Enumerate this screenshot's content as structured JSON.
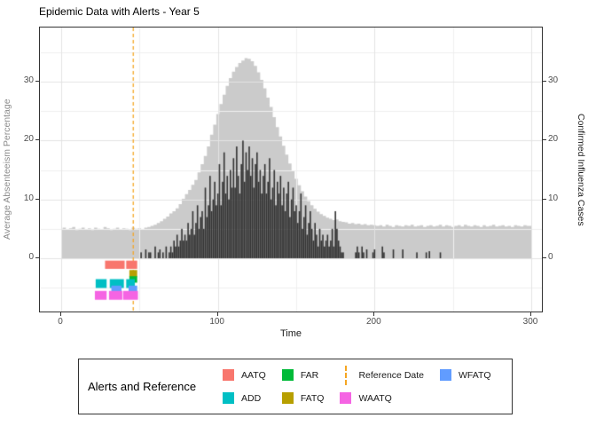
{
  "title": "Epidemic Data with Alerts - Year 5",
  "axes": {
    "left": {
      "title": "Average Absenteeism Percentage",
      "tick_values": [
        0,
        10,
        20,
        30
      ],
      "title_color": "#8C8C8C"
    },
    "right": {
      "title": "Confirmed Influenza Cases",
      "tick_values": [
        0,
        10,
        20,
        30
      ],
      "title_color": "#1A1A1A"
    },
    "x": {
      "title": "Time",
      "tick_values": [
        0,
        100,
        200,
        300
      ]
    }
  },
  "legend": {
    "title": "Alerts and Reference",
    "items": [
      {
        "label": "AATQ",
        "color": "#F8766D",
        "kind": "fill"
      },
      {
        "label": "ADD",
        "color": "#00BFC4",
        "kind": "fill"
      },
      {
        "label": "FAR",
        "color": "#00BA38",
        "kind": "fill"
      },
      {
        "label": "FATQ",
        "color": "#B79F00",
        "kind": "fill"
      },
      {
        "label": "Reference Date",
        "color": "#F5A623",
        "kind": "dashed-line"
      },
      {
        "label": "WAATQ",
        "color": "#F564E3",
        "kind": "fill"
      },
      {
        "label": "WFATQ",
        "color": "#619CFF",
        "kind": "fill"
      }
    ]
  },
  "chart_data": {
    "type": "area+bar",
    "title": "Epidemic Data with Alerts - Year 5",
    "xlabel": "Time",
    "ylabel_left": "Average Absenteeism Percentage",
    "ylabel_right": "Confirmed Influenza Cases",
    "xlim": [
      -14,
      308
    ],
    "ylim": [
      -9.4,
      39.2
    ],
    "x_ticks": [
      0,
      100,
      200,
      300
    ],
    "y_ticks": [
      0,
      10,
      20,
      30
    ],
    "grid": {
      "major_x": [
        0,
        100,
        200,
        300
      ],
      "minor_x": [
        50,
        150,
        250
      ],
      "major_y": [
        0,
        10,
        20,
        30
      ],
      "minor_y": [
        -5,
        5,
        15,
        25,
        35
      ]
    },
    "reference_date": 46,
    "colors": {
      "absenteeism": "#CBCBCB",
      "influenza": "#333333",
      "reference": "#F5A623"
    },
    "absenteeism_series": {
      "name": "Average Absenteeism Percentage",
      "x_start": 0,
      "x_step": 2,
      "values": [
        5.0,
        5.2,
        4.9,
        5.1,
        5.3,
        4.8,
        5.0,
        5.2,
        4.9,
        5.1,
        4.8,
        5.2,
        5.0,
        4.9,
        5.3,
        5.1,
        4.8,
        5.0,
        5.2,
        4.9,
        5.1,
        5.0,
        4.8,
        5.2,
        5.0,
        5.1,
        4.9,
        5.2,
        5.3,
        5.5,
        5.7,
        6.0,
        6.3,
        6.7,
        7.1,
        7.6,
        8.0,
        8.5,
        9.2,
        10.1,
        10.9,
        11.6,
        12.5,
        13.3,
        14.6,
        16.0,
        17.4,
        19.0,
        21.0,
        22.7,
        24.5,
        26.2,
        27.8,
        29.3,
        30.6,
        31.7,
        32.5,
        33.2,
        33.6,
        34.0,
        33.9,
        33.5,
        32.7,
        31.6,
        30.3,
        28.9,
        27.3,
        25.7,
        24.0,
        22.3,
        20.7,
        19.1,
        17.6,
        16.1,
        14.8,
        13.5,
        12.4,
        11.4,
        10.5,
        9.7,
        9.0,
        8.4,
        7.9,
        7.5,
        7.2,
        6.9,
        6.7,
        6.5,
        6.6,
        6.3,
        6.2,
        6.1,
        5.9,
        6.0,
        5.8,
        5.9,
        5.7,
        5.8,
        5.6,
        5.7,
        5.6,
        5.5,
        5.6,
        5.4,
        5.7,
        5.5,
        5.3,
        5.6,
        5.5,
        5.4,
        5.6,
        5.5,
        5.7,
        5.4,
        5.5,
        5.6,
        5.3,
        5.5,
        5.6,
        5.4,
        5.5,
        5.7,
        5.4,
        5.6,
        5.5,
        5.3,
        5.5,
        5.6,
        5.4,
        5.7,
        5.5,
        5.4,
        5.6,
        5.5,
        5.3,
        5.6,
        5.4,
        5.5,
        5.7,
        5.4,
        5.5,
        5.6,
        5.4,
        5.5,
        5.3,
        5.6,
        5.5,
        5.4,
        5.6,
        5.5,
        5.5
      ]
    },
    "influenza_series": {
      "name": "Confirmed Influenza Cases",
      "x_start": 50,
      "x_step": 1,
      "values": [
        0,
        1,
        0,
        0,
        1.5,
        0,
        1,
        1,
        0,
        0,
        2,
        0,
        1,
        1.5,
        0,
        1,
        0,
        2,
        0,
        1,
        2,
        1,
        3,
        2,
        4,
        2,
        3,
        5,
        3,
        4,
        3,
        6,
        4,
        5,
        8,
        4,
        6,
        9,
        5,
        7,
        8,
        5,
        12,
        7,
        9,
        14,
        8,
        10,
        13,
        9,
        11,
        16,
        9,
        13,
        18,
        11,
        14,
        10,
        15,
        12,
        17,
        12,
        19,
        14,
        11,
        16,
        20,
        13,
        18,
        15,
        19,
        14,
        17,
        12,
        16,
        18,
        13,
        15,
        11,
        14,
        16,
        11,
        13,
        17,
        10,
        12,
        15,
        9,
        13,
        11,
        14,
        9,
        12,
        8,
        11,
        13,
        7,
        10,
        12,
        8,
        9,
        6,
        8,
        11,
        5,
        7,
        9,
        4,
        6,
        8,
        5,
        3,
        6,
        4,
        2,
        5,
        3,
        4,
        2,
        3,
        4,
        2,
        3,
        5,
        2,
        8,
        5,
        3,
        2,
        1,
        1,
        0,
        0,
        0,
        0,
        0,
        0,
        0,
        1,
        2,
        1,
        0,
        2,
        1,
        0,
        1.5,
        0,
        0,
        0,
        1,
        1.5,
        0,
        0,
        0,
        0,
        2,
        1,
        0,
        0,
        0,
        0,
        0,
        1.5,
        0,
        0,
        0,
        0,
        0,
        1.5,
        0,
        0,
        0,
        0,
        0,
        0,
        0,
        0,
        1,
        0,
        0,
        0,
        0,
        0,
        1,
        0,
        1.2,
        0,
        0,
        0,
        0,
        0,
        0,
        1,
        0,
        0
      ]
    },
    "alert_markers": [
      {
        "name": "AATQ",
        "color": "#F8766D",
        "row": -1.1,
        "tile_height": 1.4,
        "segments": [
          [
            28,
            40.5
          ],
          [
            41.5,
            48.5
          ]
        ]
      },
      {
        "name": "FATQ",
        "color": "#B79F00",
        "row": -2.6,
        "tile_height": 1.2,
        "segments": [
          [
            43.5,
            48.5
          ]
        ]
      },
      {
        "name": "FAR",
        "color": "#00BA38",
        "row": -3.6,
        "tile_height": 1.1,
        "segments": [
          [
            43.5,
            48.5
          ]
        ]
      },
      {
        "name": "ADD",
        "color": "#00BFC4",
        "row": -4.3,
        "tile_height": 1.5,
        "segments": [
          [
            22,
            29
          ],
          [
            31,
            40
          ],
          [
            41.5,
            47
          ]
        ]
      },
      {
        "name": "WFATQ",
        "color": "#619CFF",
        "row": -5.4,
        "tile_height": 1.5,
        "segments": [
          [
            32,
            38.5
          ],
          [
            43,
            48.5
          ]
        ]
      },
      {
        "name": "WAATQ",
        "color": "#F564E3",
        "row": -6.3,
        "tile_height": 1.5,
        "segments": [
          [
            21.5,
            29
          ],
          [
            30.5,
            39
          ],
          [
            39.5,
            49
          ]
        ]
      }
    ]
  }
}
